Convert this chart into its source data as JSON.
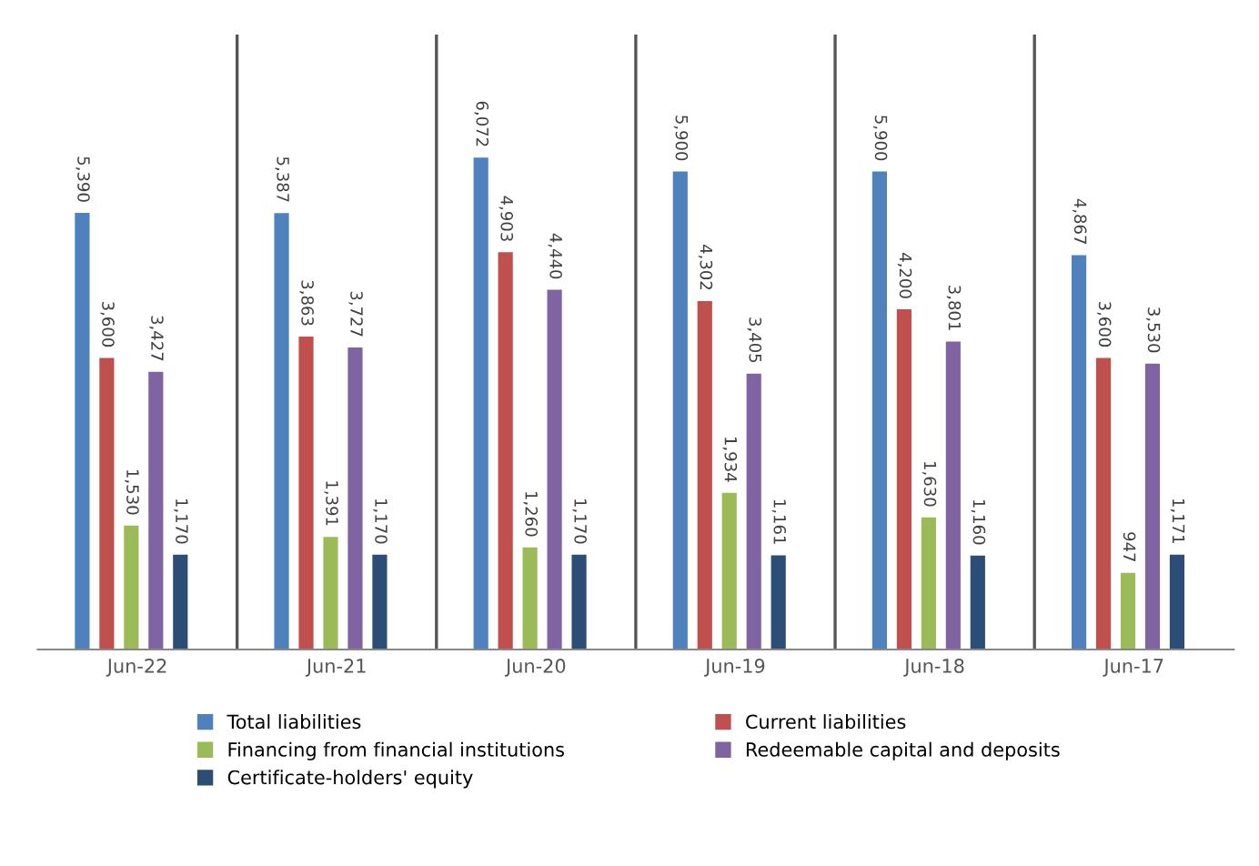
{
  "chart_data": {
    "type": "bar",
    "categories": [
      "Jun-22",
      "Jun-21",
      "Jun-20",
      "Jun-19",
      "Jun-18",
      "Jun-17"
    ],
    "series": [
      {
        "name": "Total liabilities",
        "color": "#4f81bd",
        "values": [
          5390,
          5387,
          6072,
          5900,
          5900,
          4867
        ],
        "value_labels": [
          "5,390",
          "5,387",
          "6,072",
          "5,900",
          "5,900",
          "4,867"
        ]
      },
      {
        "name": "Current liabilities",
        "color": "#c0504d",
        "values": [
          3600,
          3863,
          4903,
          4302,
          4200,
          3600
        ],
        "value_labels": [
          "3,600",
          "3,863",
          "4,903",
          "4,302",
          "4,200",
          "3,600"
        ]
      },
      {
        "name": "Financing from financial institutions",
        "color": "#9bbb59",
        "values": [
          1530,
          1391,
          1260,
          1934,
          1630,
          947
        ],
        "value_labels": [
          "1,530",
          "1,391",
          "1,260",
          "1,934",
          "1,630",
          "947"
        ]
      },
      {
        "name": "Redeemable capital and deposits",
        "color": "#8064a2",
        "values": [
          3427,
          3727,
          4440,
          3405,
          3801,
          3530
        ],
        "value_labels": [
          "3,427",
          "3,727",
          "4,440",
          "3,405",
          "3,801",
          "3,530"
        ]
      },
      {
        "name": "Certificate-holders' equity",
        "color": "#2c4d75",
        "values": [
          1170,
          1170,
          1170,
          1161,
          1160,
          1171
        ],
        "value_labels": [
          "1,170",
          "1,170",
          "1,170",
          "1,161",
          "1,160",
          "1,171"
        ]
      }
    ],
    "grid": "x",
    "legend": "bottom",
    "tick_labels": "x"
  }
}
